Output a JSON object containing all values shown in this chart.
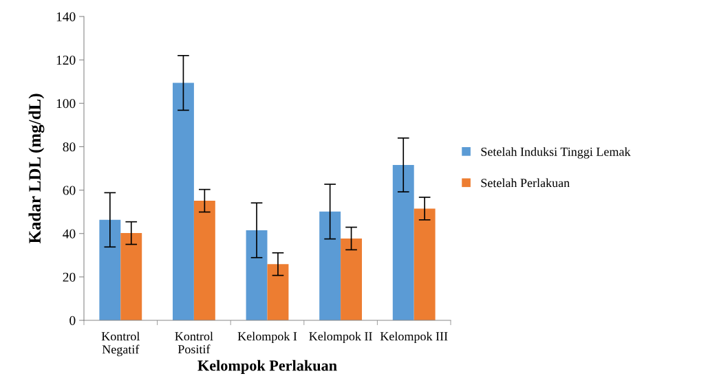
{
  "chart_data": {
    "type": "bar",
    "xlabel": "Kelompok Perlakuan",
    "ylabel": "Kadar LDL (mg/dL)",
    "categories": [
      "Kontrol\nNegatif",
      "Kontrol\nPositif",
      "Kelompok I",
      "Kelompok II",
      "Kelompok III"
    ],
    "series": [
      {
        "name": "Setelah Induksi Tinggi Lemak",
        "color": "#5b9bd5",
        "values": [
          46.3,
          109.4,
          41.5,
          50.1,
          71.6
        ],
        "errors": [
          12.5,
          12.6,
          12.6,
          12.6,
          12.4
        ]
      },
      {
        "name": "Setelah Perlakuan",
        "color": "#ed7d31",
        "values": [
          40.2,
          55.1,
          25.9,
          37.7,
          51.5
        ],
        "errors": [
          5.2,
          5.2,
          5.2,
          5.2,
          5.2
        ]
      }
    ],
    "ylim": [
      0,
      140
    ],
    "yticks": [
      0,
      20,
      40,
      60,
      80,
      100,
      120,
      140
    ],
    "grid": false,
    "legend": "right"
  }
}
